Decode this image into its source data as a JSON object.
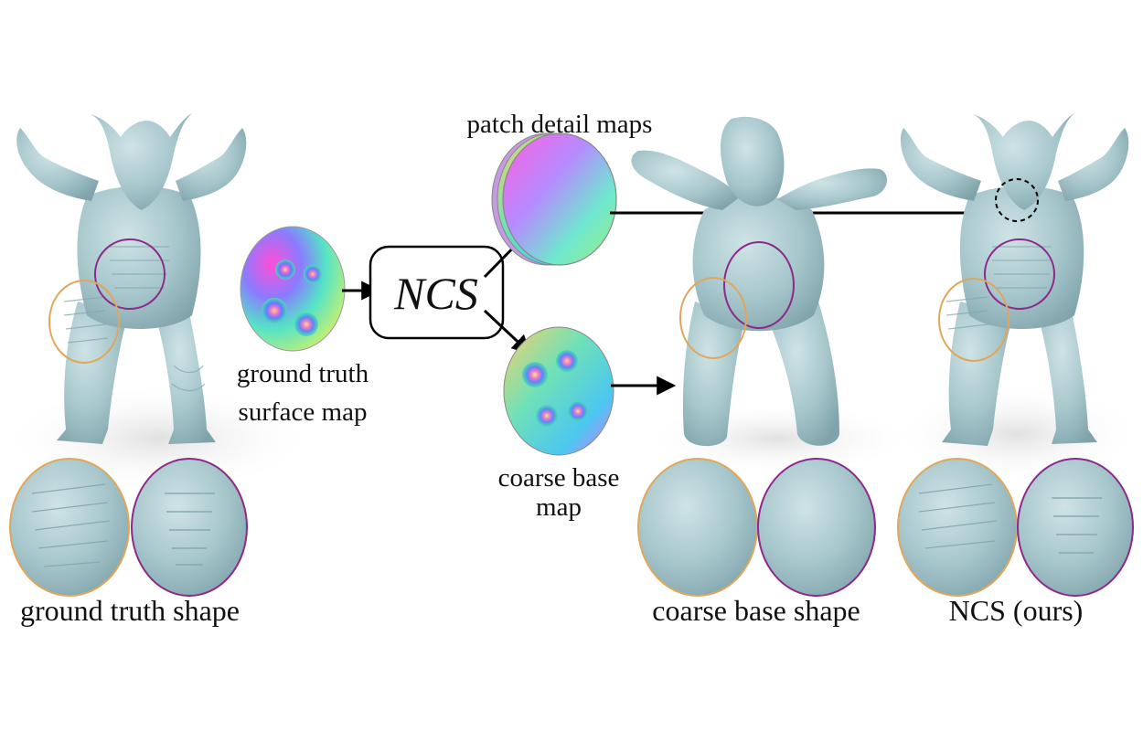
{
  "labels": {
    "patch_detail_maps": "patch detail maps",
    "ncs_box": "NCS",
    "gt_surface_map_line1": "ground truth",
    "gt_surface_map_line2": "surface map",
    "coarse_base_map_line1": "coarse base",
    "coarse_base_map_line2": "map",
    "ground_truth_shape": "ground truth shape",
    "coarse_base_shape": "coarse base shape",
    "ncs_ours": "NCS (ours)"
  },
  "colors": {
    "mesh": "#a7c7cc",
    "mesh_shade": "#86aab1",
    "mesh_light": "#c9dfe2",
    "highlight_orange": "#e0a75a",
    "highlight_purple": "#8b2a8a",
    "arrow": "#000000"
  }
}
